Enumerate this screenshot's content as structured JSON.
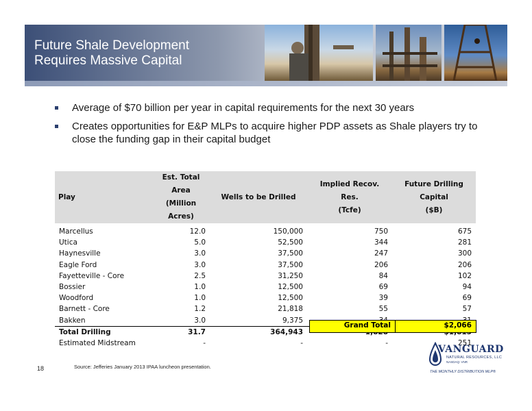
{
  "header": {
    "title_line1": "Future Shale Development",
    "title_line2": "Requires Massive Capital"
  },
  "bullets": [
    "Average of $70 billion per year in capital requirements for the next 30 years",
    "Creates opportunities for E&P MLPs to acquire higher PDP assets as Shale players try to close the funding gap in their capital budget"
  ],
  "table": {
    "headers": {
      "play": "Play",
      "area_line1": "Est. Total Area",
      "area_line2": "(Million Acres)",
      "wells": "Wells to be Drilled",
      "reserves_line1": "Implied Recov. Res.",
      "reserves_line2": "(Tcfe)",
      "capital_line1": "Future Drilling Capital",
      "capital_line2": "($B)"
    },
    "rows": [
      {
        "play": "Marcellus",
        "area": "12.0",
        "wells": "150,000",
        "reserves": "750",
        "capital": "675"
      },
      {
        "play": "Utica",
        "area": "5.0",
        "wells": "52,500",
        "reserves": "344",
        "capital": "281"
      },
      {
        "play": "Haynesville",
        "area": "3.0",
        "wells": "37,500",
        "reserves": "247",
        "capital": "300"
      },
      {
        "play": "Eagle Ford",
        "area": "3.0",
        "wells": "37,500",
        "reserves": "206",
        "capital": "206"
      },
      {
        "play": "Fayetteville - Core",
        "area": "2.5",
        "wells": "31,250",
        "reserves": "84",
        "capital": "102"
      },
      {
        "play": "Bossier",
        "area": "1.0",
        "wells": "12,500",
        "reserves": "69",
        "capital": "94"
      },
      {
        "play": "Woodford",
        "area": "1.0",
        "wells": "12,500",
        "reserves": "39",
        "capital": "69"
      },
      {
        "play": "Barnett - Core",
        "area": "1.2",
        "wells": "21,818",
        "reserves": "55",
        "capital": "57"
      },
      {
        "play": "Bakken",
        "area": "3.0",
        "wells": "9,375",
        "reserves": "34",
        "capital": "31"
      }
    ],
    "total": {
      "play": "Total Drilling",
      "area": "31.7",
      "wells": "364,943",
      "reserves": "1,828",
      "capital": "$1,815"
    },
    "midstream": {
      "play": "Estimated Midstream",
      "area": "-",
      "wells": "-",
      "reserves": "-",
      "capital": "251"
    },
    "grand_total": {
      "label": "Grand Total",
      "value": "$2,066"
    }
  },
  "footer": {
    "page_number": "18",
    "source": "Source:  Jefferies January 2013 IPAA luncheon presentation."
  },
  "logo": {
    "name": "VANGUARD",
    "subtitle": "NATURAL RESOURCES, LLC",
    "exchange": "NASDAQ: VNR",
    "tagline": "THE MONTHLY DISTRIBUTION MLP®"
  },
  "colors": {
    "banner_dark": "#3c4f77",
    "highlight": "#ffff00",
    "header_gray": "#dcdcdc",
    "brand_navy": "#1f3770"
  }
}
